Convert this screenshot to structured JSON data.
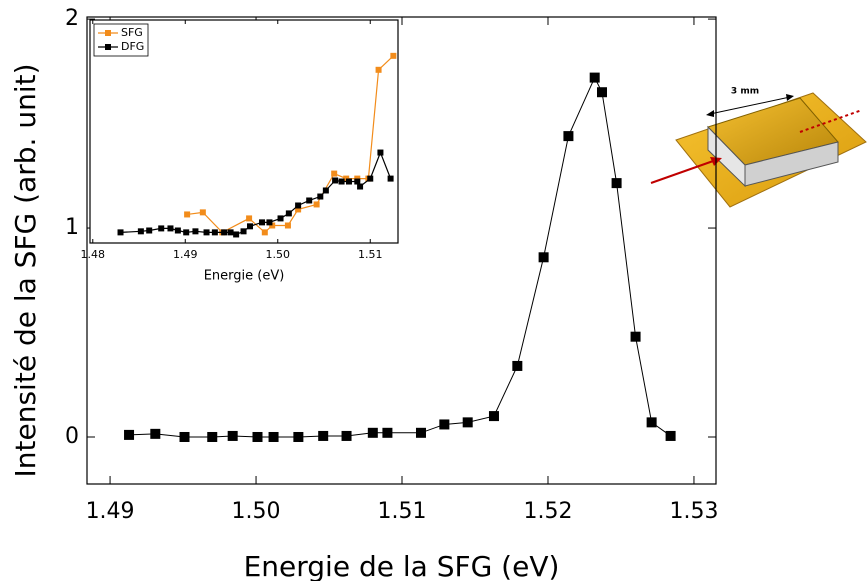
{
  "chart_data": [
    {
      "type": "line",
      "xlabel": "Energie de la SFG (eV)",
      "ylabel": "Intensité de la SFG (arb. unit)",
      "color": "#000000",
      "x": [
        1.4913,
        1.4931,
        1.4951,
        1.497,
        1.4984,
        1.5001,
        1.5012,
        1.5029,
        1.5046,
        1.5062,
        1.508,
        1.509,
        1.5113,
        1.5129,
        1.5145,
        1.5163,
        1.5179,
        1.5197,
        1.5214,
        1.5232,
        1.5237,
        1.5247,
        1.526,
        1.5271,
        1.5284
      ],
      "values": [
        0.01,
        0.015,
        0,
        0,
        0.005,
        0,
        0,
        0,
        0.005,
        0.005,
        0.02,
        0.02,
        0.02,
        0.06,
        0.07,
        0.1,
        0.34,
        0.86,
        1.44,
        1.72,
        1.65,
        1.215,
        0.48,
        0.07,
        0.005
      ],
      "xlim": [
        1.48842,
        1.53151
      ],
      "ylim": [
        -0.225,
        2.01
      ],
      "xticks": [
        1.49,
        {
          "value": 1.5,
          "label": "1.50"
        },
        1.51,
        1.52,
        1.53
      ],
      "yticks": [
        0,
        1,
        2
      ],
      "annotations": [
        "3 mm"
      ]
    },
    {
      "type": "line",
      "xlabel": "Energie (eV)",
      "legend": "upper left",
      "xlim": [
        1.4797,
        1.513
      ],
      "ylim": [
        0.93,
        2.0
      ],
      "xticks": [
        1.48,
        1.49,
        {
          "value": 1.5,
          "label": "1.50"
        },
        1.51
      ],
      "series": [
        {
          "name": "SFG",
          "color": "#f28c1b",
          "x": [
            1.4902,
            1.4919,
            1.494,
            1.4969,
            1.4986,
            1.4994,
            1.5011,
            1.5022,
            1.5042,
            1.5061,
            1.5074,
            1.5086,
            1.5098,
            1.5109,
            1.5125
          ],
          "values": [
            1.067,
            1.077,
            0.981,
            1.048,
            0.981,
            1.014,
            1.014,
            1.091,
            1.115,
            1.263,
            1.239,
            1.239,
            1.239,
            1.761,
            1.828
          ]
        },
        {
          "name": "DFG",
          "color": "#000000",
          "x": [
            1.483,
            1.4852,
            1.4861,
            1.4874,
            1.4884,
            1.4892,
            1.4901,
            1.4911,
            1.4923,
            1.4932,
            1.4942,
            1.4949,
            1.4955,
            1.4963,
            1.497,
            1.4983,
            1.4991,
            1.5003,
            1.5012,
            1.5022,
            1.5034,
            1.5046,
            1.5052,
            1.5062,
            1.5069,
            1.5077,
            1.5086,
            1.5089,
            1.51,
            1.5111,
            1.5122
          ],
          "values": [
            0.981,
            0.986,
            0.99,
            1.0,
            1.0,
            0.99,
            0.981,
            0.986,
            0.981,
            0.981,
            0.981,
            0.981,
            0.971,
            0.986,
            1.01,
            1.029,
            1.029,
            1.048,
            1.072,
            1.11,
            1.134,
            1.153,
            1.182,
            1.23,
            1.225,
            1.225,
            1.225,
            1.201,
            1.239,
            1.364,
            1.239
          ]
        }
      ]
    }
  ]
}
